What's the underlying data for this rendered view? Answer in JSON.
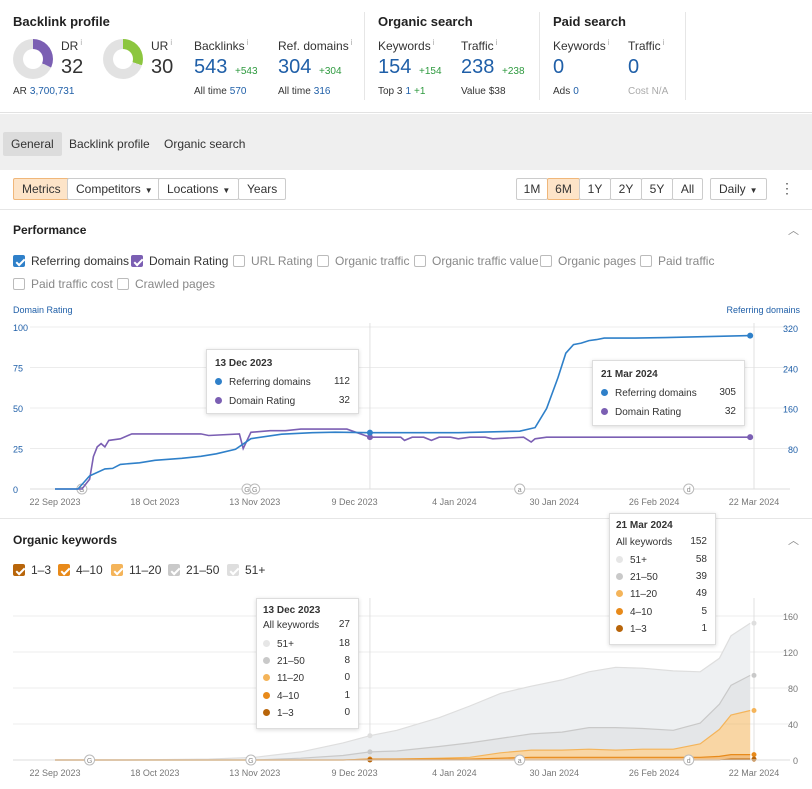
{
  "backlink_profile": {
    "title": "Backlink profile",
    "dr": {
      "label": "DR",
      "value": "32",
      "ar_label": "AR",
      "ar_value": "3,700,731",
      "color": "#7b5fb3",
      "fraction": 0.32
    },
    "ur": {
      "label": "UR",
      "value": "30",
      "color": "#8cc63f",
      "fraction": 0.3
    },
    "backlinks": {
      "label": "Backlinks",
      "value": "543",
      "delta": "+543",
      "sub_label": "All time",
      "sub_value": "570"
    },
    "ref_domains": {
      "label": "Ref. domains",
      "value": "304",
      "delta": "+304",
      "sub_label": "All time",
      "sub_value": "316"
    }
  },
  "organic_search": {
    "title": "Organic search",
    "keywords": {
      "label": "Keywords",
      "value": "154",
      "delta": "+154",
      "sub_label": "Top 3",
      "sub_value": "1",
      "sub_delta": "+1"
    },
    "traffic": {
      "label": "Traffic",
      "value": "238",
      "delta": "+238",
      "sub_label": "Value",
      "sub_value": "$38"
    }
  },
  "paid_search": {
    "title": "Paid search",
    "keywords": {
      "label": "Keywords",
      "value": "0",
      "sub_label": "Ads",
      "sub_value": "0"
    },
    "traffic": {
      "label": "Traffic",
      "value": "0",
      "sub_label": "Cost",
      "sub_value": "N/A"
    }
  },
  "tabs": [
    "General",
    "Backlink profile",
    "Organic search"
  ],
  "controls": {
    "metrics": "Metrics",
    "competitors": "Competitors",
    "locations": "Locations",
    "years": "Years",
    "ranges": [
      "1M",
      "6M",
      "1Y",
      "2Y",
      "5Y",
      "All"
    ],
    "active_range": "6M",
    "interval": "Daily"
  },
  "performance": {
    "title": "Performance",
    "checkboxes": [
      {
        "label": "Referring domains",
        "checked": true,
        "color": "#2f80c9"
      },
      {
        "label": "Domain Rating",
        "checked": true,
        "color": "#7b5fb3"
      },
      {
        "label": "URL Rating",
        "checked": false
      },
      {
        "label": "Organic traffic",
        "checked": false
      },
      {
        "label": "Organic traffic value",
        "checked": false
      },
      {
        "label": "Organic pages",
        "checked": false
      },
      {
        "label": "Paid traffic",
        "checked": false
      },
      {
        "label": "Paid traffic cost",
        "checked": false
      },
      {
        "label": "Crawled pages",
        "checked": false
      }
    ],
    "left_axis_caption": "Domain Rating",
    "right_axis_caption": "Referring domains",
    "tooltip1": {
      "date": "13 Dec 2023",
      "rows": [
        {
          "label": "Referring domains",
          "value": "112"
        },
        {
          "label": "Domain Rating",
          "value": "32"
        }
      ]
    },
    "tooltip2": {
      "date": "21 Mar 2024",
      "rows": [
        {
          "label": "Referring domains",
          "value": "305"
        },
        {
          "label": "Domain Rating",
          "value": "32"
        }
      ]
    }
  },
  "organic_keywords": {
    "title": "Organic keywords",
    "checkboxes": [
      {
        "label": "1–3",
        "color": "#b8650a"
      },
      {
        "label": "4–10",
        "color": "#e88a1a"
      },
      {
        "label": "11–20",
        "color": "#f4b45a"
      },
      {
        "label": "21–50",
        "color": "#c9c9c9"
      },
      {
        "label": "51+",
        "color": "#dedede"
      }
    ],
    "tooltip1": {
      "date": "13 Dec 2023",
      "total_label": "All keywords",
      "total": "27",
      "rows": [
        {
          "label": "51+",
          "value": "18"
        },
        {
          "label": "21–50",
          "value": "8"
        },
        {
          "label": "11–20",
          "value": "0"
        },
        {
          "label": "4–10",
          "value": "1"
        },
        {
          "label": "1–3",
          "value": "0"
        }
      ]
    },
    "tooltip2": {
      "date": "21 Mar 2024",
      "total_label": "All keywords",
      "total": "152",
      "rows": [
        {
          "label": "51+",
          "value": "58"
        },
        {
          "label": "21–50",
          "value": "39"
        },
        {
          "label": "11–20",
          "value": "49"
        },
        {
          "label": "4–10",
          "value": "5"
        },
        {
          "label": "1–3",
          "value": "1"
        }
      ]
    }
  },
  "chart_data": [
    {
      "type": "line",
      "title": "Performance",
      "x_ticks": [
        "22 Sep 2023",
        "18 Oct 2023",
        "13 Nov 2023",
        "9 Dec 2023",
        "4 Jan 2024",
        "30 Jan 2024",
        "26 Feb 2024",
        "22 Mar 2024"
      ],
      "y_left_ticks": [
        "0",
        "25",
        "50",
        "75",
        "100"
      ],
      "y_right_ticks": [
        "80",
        "160",
        "240",
        "320"
      ],
      "ylim_left": [
        0,
        100
      ],
      "ylim_right": [
        0,
        330
      ],
      "series": [
        {
          "name": "Domain Rating",
          "axis": "left",
          "color": "#7b5fb3",
          "x": [
            "2023-09-22",
            "2023-09-29",
            "2023-10-01",
            "2023-10-02",
            "2023-10-03",
            "2023-10-04",
            "2023-10-05",
            "2023-10-06",
            "2023-10-09",
            "2023-10-11",
            "2023-10-12",
            "2023-10-30",
            "2023-11-01",
            "2023-11-09",
            "2023-11-10",
            "2023-11-12",
            "2023-11-17",
            "2023-11-21",
            "2023-11-25",
            "2023-12-01",
            "2023-12-07",
            "2023-12-13",
            "2023-12-21",
            "2023-12-22",
            "2023-12-24",
            "2023-12-27",
            "2023-12-29",
            "2023-12-31",
            "2024-01-03",
            "2024-01-05",
            "2024-01-08",
            "2024-01-12",
            "2024-01-14",
            "2024-01-22",
            "2024-01-24",
            "2024-01-25",
            "2024-01-28",
            "2024-02-05",
            "2024-02-20",
            "2024-03-05",
            "2024-03-21"
          ],
          "y": [
            0,
            0,
            6,
            20,
            26,
            28,
            26,
            30,
            31,
            33,
            34,
            34,
            33,
            34,
            25,
            35,
            36,
            36,
            37,
            37,
            37,
            32,
            32,
            30,
            32,
            32,
            30,
            32,
            32,
            31,
            32,
            32,
            31,
            32,
            29,
            31,
            32,
            32,
            32,
            32,
            32
          ]
        },
        {
          "name": "Referring domains",
          "axis": "right",
          "color": "#2f80c9",
          "x": [
            "2023-09-22",
            "2023-09-28",
            "2023-10-01",
            "2023-10-05",
            "2023-10-07",
            "2023-10-09",
            "2023-10-14",
            "2023-10-18",
            "2023-10-25",
            "2023-10-30",
            "2023-11-03",
            "2023-11-08",
            "2023-11-12",
            "2023-11-20",
            "2023-11-28",
            "2023-12-04",
            "2023-12-13",
            "2024-01-05",
            "2024-01-21",
            "2024-01-25",
            "2024-01-28",
            "2024-01-31",
            "2024-02-02",
            "2024-02-04",
            "2024-02-06",
            "2024-02-08",
            "2024-02-10",
            "2024-02-12",
            "2024-02-20",
            "2024-02-28",
            "2024-03-10",
            "2024-03-21"
          ],
          "y": [
            0,
            0,
            26,
            40,
            41,
            49,
            52,
            57,
            61,
            65,
            70,
            79,
            100,
            109,
            112,
            113,
            112,
            112,
            115,
            122,
            160,
            222,
            270,
            287,
            290,
            295,
            297,
            300,
            300,
            301,
            303,
            305
          ]
        }
      ]
    },
    {
      "type": "area",
      "title": "Organic keywords",
      "x_ticks": [
        "22 Sep 2023",
        "18 Oct 2023",
        "13 Nov 2023",
        "9 Dec 2023",
        "4 Jan 2024",
        "30 Jan 2024",
        "26 Feb 2024",
        "22 Mar 2024"
      ],
      "y_ticks": [
        "0",
        "40",
        "80",
        "120",
        "160"
      ],
      "ylim": [
        0,
        180
      ],
      "x": [
        "2023-09-22",
        "2023-10-10",
        "2023-11-01",
        "2023-11-13",
        "2023-11-25",
        "2023-12-06",
        "2023-12-13",
        "2023-12-20",
        "2023-12-31",
        "2024-01-08",
        "2024-01-16",
        "2024-01-24",
        "2024-02-01",
        "2024-02-08",
        "2024-02-15",
        "2024-02-22",
        "2024-03-01",
        "2024-03-08",
        "2024-03-13",
        "2024-03-16",
        "2024-03-21"
      ],
      "series": [
        {
          "name": "1–3",
          "color": "#b8650a",
          "values": [
            0,
            0,
            0,
            0,
            0,
            0,
            0,
            0,
            0,
            0,
            0,
            0,
            0,
            0,
            0,
            0,
            0,
            0,
            0,
            1,
            1
          ]
        },
        {
          "name": "4–10",
          "color": "#e88a1a",
          "values": [
            0,
            0,
            0,
            0,
            0,
            0,
            1,
            1,
            1,
            1,
            2,
            3,
            3,
            3,
            3,
            3,
            3,
            3,
            4,
            5,
            5
          ]
        },
        {
          "name": "11–20",
          "color": "#f4b45a",
          "values": [
            0,
            0,
            0,
            0,
            0,
            0,
            0,
            0,
            1,
            2,
            6,
            8,
            8,
            9,
            8,
            9,
            9,
            15,
            30,
            44,
            49
          ]
        },
        {
          "name": "21–50",
          "color": "#c9c9c9",
          "values": [
            0,
            0,
            0,
            0,
            2,
            5,
            8,
            9,
            13,
            16,
            16,
            18,
            20,
            24,
            25,
            23,
            21,
            23,
            28,
            33,
            39
          ]
        },
        {
          "name": "51+",
          "color": "#dedede",
          "values": [
            0,
            0,
            1,
            3,
            7,
            14,
            18,
            23,
            32,
            41,
            50,
            53,
            58,
            62,
            67,
            67,
            66,
            57,
            51,
            55,
            58
          ]
        }
      ]
    }
  ]
}
